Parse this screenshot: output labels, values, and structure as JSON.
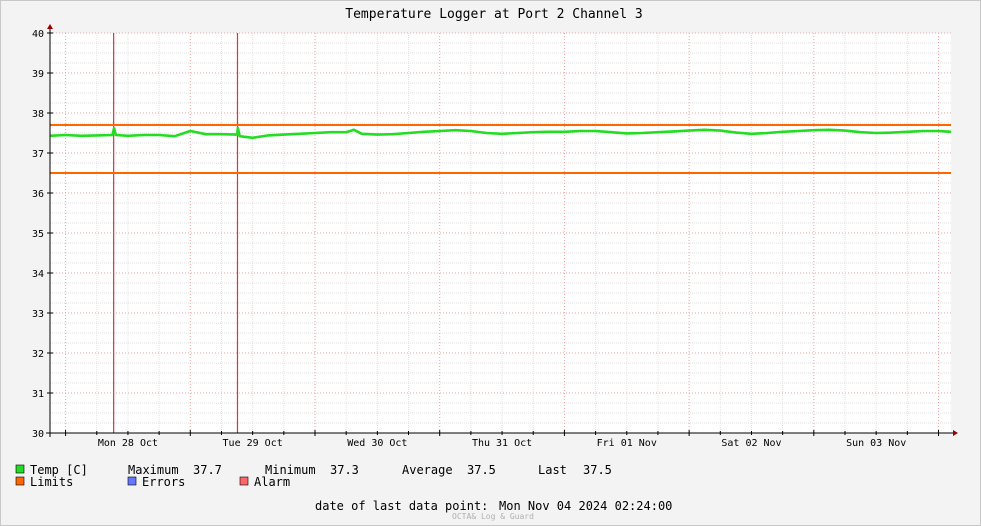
{
  "chart_data": {
    "type": "line",
    "title": "Temperature Logger at Port 2 Channel 3",
    "ylim": [
      30,
      40
    ],
    "yticks": [
      30,
      31,
      32,
      33,
      34,
      35,
      36,
      37,
      38,
      39,
      40
    ],
    "x_range": [
      "2024-10-27T21:00",
      "2024-11-04T02:24"
    ],
    "x_day_labels": [
      {
        "label": "Mon 28 Oct",
        "at": "2024-10-28T12:00"
      },
      {
        "label": "Tue 29 Oct",
        "at": "2024-10-29T12:00"
      },
      {
        "label": "Wed 30 Oct",
        "at": "2024-10-30T12:00"
      },
      {
        "label": "Thu 31 Oct",
        "at": "2024-10-31T12:00"
      },
      {
        "label": "Fri 01 Nov",
        "at": "2024-11-01T12:00"
      },
      {
        "label": "Sat 02 Nov",
        "at": "2024-11-02T12:00"
      },
      {
        "label": "Sun 03 Nov",
        "at": "2024-11-03T12:00"
      }
    ],
    "grid": true,
    "limits": [
      37.7,
      36.5
    ],
    "alarm_events": [
      "2024-10-28T09:15",
      "2024-10-29T09:05"
    ],
    "series": [
      {
        "name": "Temp [C]",
        "color": "#22dd22",
        "points": [
          [
            "2024-10-27T21:00",
            37.43
          ],
          [
            "2024-10-28T00:00",
            37.45
          ],
          [
            "2024-10-28T03:00",
            37.43
          ],
          [
            "2024-10-28T06:00",
            37.44
          ],
          [
            "2024-10-28T09:00",
            37.45
          ],
          [
            "2024-10-28T09:20",
            37.62
          ],
          [
            "2024-10-28T09:40",
            37.45
          ],
          [
            "2024-10-28T12:00",
            37.43
          ],
          [
            "2024-10-28T15:00",
            37.45
          ],
          [
            "2024-10-28T18:00",
            37.45
          ],
          [
            "2024-10-28T21:00",
            37.42
          ],
          [
            "2024-10-29T00:00",
            37.55
          ],
          [
            "2024-10-29T03:00",
            37.47
          ],
          [
            "2024-10-29T06:00",
            37.47
          ],
          [
            "2024-10-29T09:00",
            37.46
          ],
          [
            "2024-10-29T09:10",
            37.62
          ],
          [
            "2024-10-29T09:30",
            37.42
          ],
          [
            "2024-10-29T12:00",
            37.38
          ],
          [
            "2024-10-29T15:00",
            37.44
          ],
          [
            "2024-10-29T18:00",
            37.46
          ],
          [
            "2024-10-29T21:00",
            37.48
          ],
          [
            "2024-10-30T00:00",
            37.5
          ],
          [
            "2024-10-30T03:00",
            37.52
          ],
          [
            "2024-10-30T06:00",
            37.52
          ],
          [
            "2024-10-30T07:30",
            37.58
          ],
          [
            "2024-10-30T09:00",
            37.48
          ],
          [
            "2024-10-30T12:00",
            37.46
          ],
          [
            "2024-10-30T15:00",
            37.47
          ],
          [
            "2024-10-30T18:00",
            37.5
          ],
          [
            "2024-10-30T21:00",
            37.53
          ],
          [
            "2024-10-31T00:00",
            37.55
          ],
          [
            "2024-10-31T03:00",
            37.57
          ],
          [
            "2024-10-31T06:00",
            37.55
          ],
          [
            "2024-10-31T09:00",
            37.5
          ],
          [
            "2024-10-31T12:00",
            37.48
          ],
          [
            "2024-10-31T15:00",
            37.5
          ],
          [
            "2024-10-31T18:00",
            37.52
          ],
          [
            "2024-10-31T21:00",
            37.53
          ],
          [
            "2024-11-01T00:00",
            37.53
          ],
          [
            "2024-11-01T03:00",
            37.55
          ],
          [
            "2024-11-01T06:00",
            37.55
          ],
          [
            "2024-11-01T09:00",
            37.52
          ],
          [
            "2024-11-01T12:00",
            37.49
          ],
          [
            "2024-11-01T15:00",
            37.5
          ],
          [
            "2024-11-01T18:00",
            37.52
          ],
          [
            "2024-11-01T21:00",
            37.54
          ],
          [
            "2024-11-02T00:00",
            37.56
          ],
          [
            "2024-11-02T03:00",
            37.58
          ],
          [
            "2024-11-02T06:00",
            37.56
          ],
          [
            "2024-11-02T09:00",
            37.51
          ],
          [
            "2024-11-02T12:00",
            37.48
          ],
          [
            "2024-11-02T15:00",
            37.5
          ],
          [
            "2024-11-02T18:00",
            37.53
          ],
          [
            "2024-11-02T21:00",
            37.55
          ],
          [
            "2024-11-03T00:00",
            37.57
          ],
          [
            "2024-11-03T03:00",
            37.58
          ],
          [
            "2024-11-03T06:00",
            37.56
          ],
          [
            "2024-11-03T09:00",
            37.52
          ],
          [
            "2024-11-03T12:00",
            37.5
          ],
          [
            "2024-11-03T15:00",
            37.51
          ],
          [
            "2024-11-03T18:00",
            37.53
          ],
          [
            "2024-11-03T21:00",
            37.55
          ],
          [
            "2024-11-04T00:00",
            37.55
          ],
          [
            "2024-11-04T02:24",
            37.53
          ]
        ]
      }
    ],
    "colors": {
      "temp": "#22dd22",
      "limits": "#ff6600",
      "errors": "#6677ff",
      "alarm": "#ff6666",
      "alarm_line": "#dd3333"
    }
  },
  "legend": {
    "temp_label": "Temp [C]",
    "limits_label": "Limits",
    "errors_label": "Errors",
    "alarm_label": "Alarm",
    "max_label": "Maximum",
    "max_value": "37.7",
    "min_label": "Minimum",
    "min_value": "37.3",
    "avg_label": "Average",
    "avg_value": "37.5",
    "last_label": "Last",
    "last_value": "37.5"
  },
  "footer": {
    "last_point_label": "date of last data point:",
    "last_point_value": "Mon Nov 04 2024 02:24:00",
    "credit": "OCTA& Log & Guard"
  }
}
